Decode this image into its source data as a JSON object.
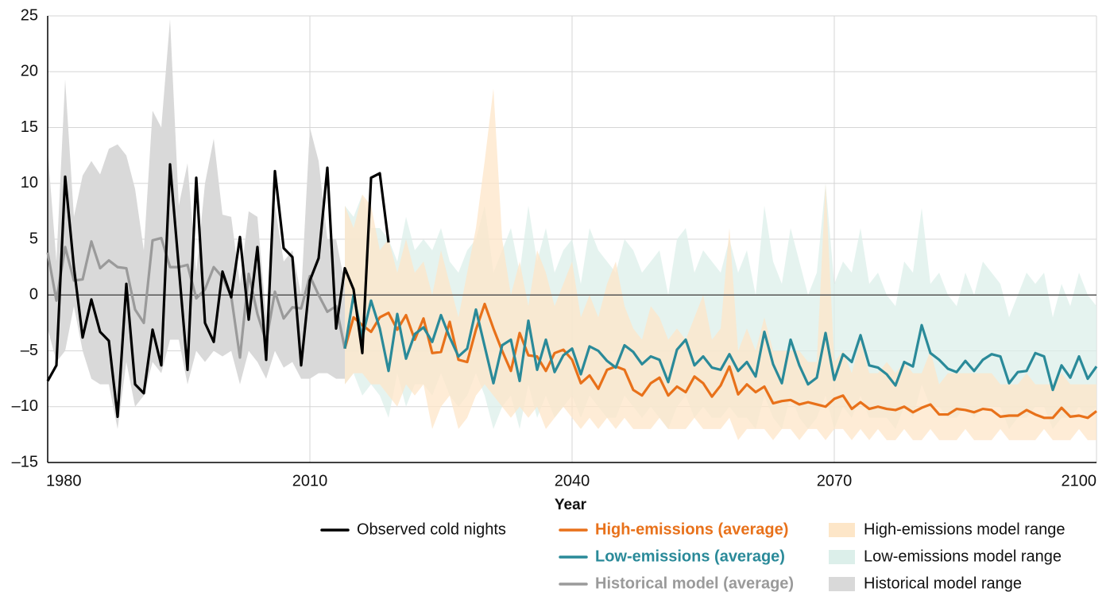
{
  "chart_data": {
    "type": "line",
    "x_label": "Year",
    "xlim": [
      1980,
      2100
    ],
    "xticks": [
      1980,
      2010,
      2040,
      2070,
      2100
    ],
    "ylim": [
      -15,
      25
    ],
    "yticks": [
      {
        "value": -15,
        "label": "–15"
      },
      {
        "value": -10,
        "label": "–10"
      },
      {
        "value": -5,
        "label": "–5"
      },
      0,
      5,
      10,
      15,
      20,
      25
    ],
    "grid": true,
    "series": [
      {
        "name": "Observed cold nights",
        "type": "line",
        "color": "#000000",
        "x": [
          1980,
          1981,
          1982,
          1983,
          1984,
          1985,
          1986,
          1987,
          1988,
          1989,
          1990,
          1991,
          1992,
          1993,
          1994,
          1995,
          1996,
          1997,
          1998,
          1999,
          2000,
          2001,
          2002,
          2003,
          2004,
          2005,
          2006,
          2007,
          2008,
          2009,
          2010,
          2011,
          2012,
          2013,
          2014,
          2015,
          2016,
          2017,
          2018,
          2019
        ],
        "values": [
          -7.7,
          -6.3,
          10.6,
          2.5,
          -3.8,
          -0.4,
          -3.3,
          -4.1,
          -10.9,
          1.0,
          -8,
          -8.8,
          -3.1,
          -6.3,
          11.7,
          2.5,
          -6.7,
          10.5,
          -2.5,
          -4.2,
          2.1,
          -0.2,
          5.2,
          -2.2,
          4.3,
          -5.8,
          11.1,
          4.2,
          3.4,
          -6.3,
          1.3,
          3.3,
          11.4,
          -3.0,
          2.4,
          0.5,
          -5.2,
          10.5,
          10.9,
          4.7
        ]
      },
      {
        "name": "High-emissions (average)",
        "type": "line",
        "color": "#e8711a",
        "emphasis": true,
        "x": [
          2014,
          2015,
          2016,
          2017,
          2018,
          2019,
          2020,
          2021,
          2022,
          2023,
          2024,
          2025,
          2026,
          2027,
          2028,
          2029,
          2030,
          2031,
          2032,
          2033,
          2034,
          2035,
          2036,
          2037,
          2038,
          2039,
          2040,
          2041,
          2042,
          2043,
          2044,
          2045,
          2046,
          2047,
          2048,
          2049,
          2050,
          2051,
          2052,
          2053,
          2054,
          2055,
          2056,
          2057,
          2058,
          2059,
          2060,
          2061,
          2062,
          2063,
          2064,
          2065,
          2066,
          2067,
          2068,
          2069,
          2070,
          2071,
          2072,
          2073,
          2074,
          2075,
          2076,
          2077,
          2078,
          2079,
          2080,
          2081,
          2082,
          2083,
          2084,
          2085,
          2086,
          2087,
          2088,
          2089,
          2090,
          2091,
          2092,
          2093,
          2094,
          2095,
          2096,
          2097,
          2098,
          2099,
          2100
        ],
        "values": [
          -4.8,
          -2,
          -2.7,
          -3.3,
          -2,
          -1.6,
          -3.1,
          -1.8,
          -4,
          -2.1,
          -5.2,
          -5.1,
          -2.4,
          -5.8,
          -6,
          -3.1,
          -0.8,
          -3,
          -5,
          -6.8,
          -3.4,
          -5.4,
          -5.5,
          -6.8,
          -5.2,
          -4.9,
          -5.8,
          -7.9,
          -7.2,
          -8.4,
          -6.7,
          -6.4,
          -6.7,
          -8.5,
          -9.0,
          -7.9,
          -7.4,
          -9.0,
          -8.2,
          -8.7,
          -7.3,
          -7.9,
          -9.1,
          -8.1,
          -6.4,
          -8.9,
          -8.0,
          -8.7,
          -8.2,
          -9.7,
          -9.5,
          -9.4,
          -9.8,
          -9.6,
          -9.8,
          -10.0,
          -9.3,
          -9.0,
          -10.2,
          -9.6,
          -10.2,
          -10.0,
          -10.2,
          -10.3,
          -10.0,
          -10.5,
          -10.1,
          -9.8,
          -10.7,
          -10.7,
          -10.2,
          -10.3,
          -10.5,
          -10.2,
          -10.3,
          -10.9,
          -10.8,
          -10.8,
          -10.3,
          -10.7,
          -11.0,
          -11.0,
          -10.1,
          -10.9,
          -10.8,
          -11.0,
          -10.4
        ]
      },
      {
        "name": "Low-emissions (average)",
        "type": "line",
        "color": "#2a8a99",
        "emphasis": true,
        "x": [
          2014,
          2015,
          2016,
          2017,
          2018,
          2019,
          2020,
          2021,
          2022,
          2023,
          2024,
          2025,
          2026,
          2027,
          2028,
          2029,
          2030,
          2031,
          2032,
          2033,
          2034,
          2035,
          2036,
          2037,
          2038,
          2039,
          2040,
          2041,
          2042,
          2043,
          2044,
          2045,
          2046,
          2047,
          2048,
          2049,
          2050,
          2051,
          2052,
          2053,
          2054,
          2055,
          2056,
          2057,
          2058,
          2059,
          2060,
          2061,
          2062,
          2063,
          2064,
          2065,
          2066,
          2067,
          2068,
          2069,
          2070,
          2071,
          2072,
          2073,
          2074,
          2075,
          2076,
          2077,
          2078,
          2079,
          2080,
          2081,
          2082,
          2083,
          2084,
          2085,
          2086,
          2087,
          2088,
          2089,
          2090,
          2091,
          2092,
          2093,
          2094,
          2095,
          2096,
          2097,
          2098,
          2099,
          2100
        ],
        "values": [
          -4.8,
          0.0,
          -3.8,
          -0.5,
          -3.0,
          -6.8,
          -1.7,
          -5.7,
          -3.5,
          -2.9,
          -4.2,
          -1.8,
          -3.8,
          -5.5,
          -4.8,
          -1.3,
          -4.6,
          -7.9,
          -4.5,
          -4.0,
          -7.7,
          -2.3,
          -6.7,
          -4.0,
          -6.9,
          -5.4,
          -4.8,
          -7.1,
          -4.6,
          -5.0,
          -5.9,
          -6.5,
          -4.5,
          -5.1,
          -6.2,
          -5.5,
          -5.8,
          -7.8,
          -4.9,
          -4.0,
          -6.3,
          -5.5,
          -6.5,
          -6.7,
          -5.3,
          -6.8,
          -6.0,
          -7.3,
          -3.3,
          -6.2,
          -7.9,
          -4.0,
          -6.3,
          -8.0,
          -7.4,
          -3.4,
          -7.6,
          -5.3,
          -6.0,
          -3.6,
          -6.3,
          -6.5,
          -7.1,
          -8.1,
          -6.0,
          -6.4,
          -2.7,
          -5.2,
          -5.8,
          -6.6,
          -6.9,
          -5.9,
          -6.8,
          -5.8,
          -5.3,
          -5.5,
          -7.9,
          -6.9,
          -6.8,
          -5.2,
          -5.5,
          -8.5,
          -6.3,
          -7.4,
          -5.5,
          -7.5,
          -6.4
        ]
      },
      {
        "name": "Historical model (average)",
        "type": "line",
        "color": "#9a9a9a",
        "emphasis": true,
        "x": [
          1980,
          1981,
          1982,
          1983,
          1984,
          1985,
          1986,
          1987,
          1988,
          1989,
          1990,
          1991,
          1992,
          1993,
          1994,
          1995,
          1996,
          1997,
          1998,
          1999,
          2000,
          2001,
          2002,
          2003,
          2004,
          2005,
          2006,
          2007,
          2008,
          2009,
          2010,
          2011,
          2012,
          2013,
          2014
        ],
        "values": [
          3.8,
          -0.5,
          4.3,
          1.3,
          1.4,
          4.8,
          2.4,
          3.1,
          2.5,
          2.4,
          -1.3,
          -2.5,
          4.9,
          5.1,
          2.5,
          2.5,
          2.7,
          -0.3,
          0.5,
          2.5,
          1.6,
          -0.1,
          -5.6,
          1.9,
          -1.7,
          -4.2,
          0.3,
          -2.1,
          -1.1,
          -1.2,
          1.7,
          0.0,
          -1.5,
          -1.0,
          -4.8
        ]
      },
      {
        "name": "High-emissions model range",
        "type": "band",
        "color": "#fde6c8",
        "x": [
          2014,
          2015,
          2016,
          2017,
          2018,
          2019,
          2020,
          2021,
          2022,
          2023,
          2024,
          2025,
          2026,
          2027,
          2028,
          2029,
          2030,
          2031,
          2032,
          2033,
          2034,
          2035,
          2036,
          2037,
          2038,
          2039,
          2040,
          2041,
          2042,
          2043,
          2044,
          2045,
          2046,
          2047,
          2048,
          2049,
          2050,
          2051,
          2052,
          2053,
          2054,
          2055,
          2056,
          2057,
          2058,
          2059,
          2060,
          2061,
          2062,
          2063,
          2064,
          2065,
          2066,
          2067,
          2068,
          2069,
          2070,
          2071,
          2072,
          2073,
          2074,
          2075,
          2076,
          2077,
          2078,
          2079,
          2080,
          2081,
          2082,
          2083,
          2084,
          2085,
          2086,
          2087,
          2088,
          2089,
          2090,
          2091,
          2092,
          2093,
          2094,
          2095,
          2096,
          2097,
          2098,
          2099,
          2100
        ],
        "upper": [
          8,
          6,
          9,
          8,
          4,
          5,
          2,
          5,
          2,
          3,
          0,
          4,
          1,
          -2,
          2,
          6,
          12,
          18.5,
          5,
          0,
          3,
          -1,
          4,
          2,
          -1,
          1,
          3,
          -2,
          0,
          -2,
          1,
          3,
          -1,
          -3,
          -4,
          -1,
          -2,
          -4,
          -3,
          -4,
          -2,
          0,
          -4,
          -3,
          6,
          -5,
          -3,
          -5,
          -2,
          -5,
          -5,
          -5,
          -5,
          -6,
          -6,
          10,
          -6,
          -5,
          -7,
          -4,
          -7,
          -7,
          -6,
          -7,
          -6,
          -7,
          -7,
          -5,
          -8,
          -7,
          -7,
          -7,
          -7,
          -7,
          -7,
          -8,
          -8,
          -8,
          -7,
          -8,
          -8,
          -8,
          -7,
          -8,
          -8,
          -8,
          -8
        ],
        "lower": [
          -8,
          -7,
          -7,
          -8,
          -8,
          -9,
          -10,
          -8,
          -9,
          -8,
          -12,
          -10,
          -9,
          -12,
          -11,
          -9,
          -8,
          -9,
          -10,
          -11,
          -10,
          -11,
          -10,
          -12,
          -11,
          -10,
          -11,
          -12,
          -11,
          -12,
          -11,
          -12,
          -11,
          -12,
          -12,
          -12,
          -11,
          -12,
          -12,
          -12,
          -11,
          -12,
          -12,
          -12,
          -11,
          -13,
          -12,
          -12,
          -12,
          -13,
          -12,
          -12,
          -13,
          -12,
          -12,
          -13,
          -12,
          -12,
          -13,
          -12,
          -13,
          -12,
          -13,
          -13,
          -12,
          -13,
          -13,
          -12,
          -13,
          -13,
          -13,
          -12,
          -13,
          -13,
          -13,
          -12,
          -13,
          -13,
          -13,
          -13,
          -12,
          -13,
          -13,
          -13,
          -12,
          -13,
          -13
        ]
      },
      {
        "name": "Low-emissions model range",
        "type": "band",
        "color": "#dcefea",
        "x": [
          2014,
          2015,
          2016,
          2017,
          2018,
          2019,
          2020,
          2021,
          2022,
          2023,
          2024,
          2025,
          2026,
          2027,
          2028,
          2029,
          2030,
          2031,
          2032,
          2033,
          2034,
          2035,
          2036,
          2037,
          2038,
          2039,
          2040,
          2041,
          2042,
          2043,
          2044,
          2045,
          2046,
          2047,
          2048,
          2049,
          2050,
          2051,
          2052,
          2053,
          2054,
          2055,
          2056,
          2057,
          2058,
          2059,
          2060,
          2061,
          2062,
          2063,
          2064,
          2065,
          2066,
          2067,
          2068,
          2069,
          2070,
          2071,
          2072,
          2073,
          2074,
          2075,
          2076,
          2077,
          2078,
          2079,
          2080,
          2081,
          2082,
          2083,
          2084,
          2085,
          2086,
          2087,
          2088,
          2089,
          2090,
          2091,
          2092,
          2093,
          2094,
          2095,
          2096,
          2097,
          2098,
          2099,
          2100
        ],
        "upper": [
          8,
          7,
          9,
          6,
          6,
          5,
          3,
          7,
          4,
          5,
          4,
          6,
          3,
          2,
          4,
          5,
          8,
          2,
          4,
          6,
          2,
          8,
          3,
          6,
          2,
          4,
          5,
          1,
          6,
          4,
          3,
          2,
          5,
          4,
          2,
          3,
          4,
          0,
          5,
          6,
          2,
          4,
          3,
          2,
          5,
          2,
          4,
          0,
          8,
          3,
          1,
          6,
          3,
          0,
          2,
          10,
          1,
          3,
          2,
          6,
          1,
          2,
          0,
          -1,
          3,
          2,
          7.8,
          1,
          2,
          0,
          -1,
          2,
          0,
          3,
          2,
          1,
          -2,
          0,
          2,
          1,
          2,
          -2,
          1,
          -1,
          2,
          0,
          -1
        ],
        "lower": [
          -8,
          -7,
          -9,
          -8,
          -9,
          -11,
          -7,
          -10,
          -8,
          -8,
          -9,
          -7,
          -9,
          -10,
          -9,
          -7,
          -9,
          -12,
          -10,
          -9,
          -12,
          -8,
          -11,
          -9,
          -11,
          -10,
          -9,
          -11,
          -9,
          -10,
          -11,
          -11,
          -9,
          -10,
          -11,
          -10,
          -11,
          -12,
          -10,
          -9,
          -11,
          -10,
          -11,
          -11,
          -10,
          -11,
          -11,
          -12,
          -9,
          -11,
          -12,
          -9,
          -11,
          -12,
          -11,
          -9,
          -12,
          -10,
          -11,
          -9,
          -11,
          -11,
          -11,
          -12,
          -10,
          -11,
          -8,
          -10,
          -10,
          -11,
          -11,
          -10,
          -11,
          -10,
          -10,
          -10,
          -12,
          -11,
          -11,
          -10,
          -10,
          -12,
          -11,
          -11,
          -10,
          -11,
          -10
        ]
      },
      {
        "name": "Historical model range",
        "type": "band",
        "color": "#d9d9d9",
        "x": [
          1980,
          1981,
          1982,
          1983,
          1984,
          1985,
          1986,
          1987,
          1988,
          1989,
          1990,
          1991,
          1992,
          1993,
          1994,
          1995,
          1996,
          1997,
          1998,
          1999,
          2000,
          2001,
          2002,
          2003,
          2004,
          2005,
          2006,
          2007,
          2008,
          2009,
          2010,
          2011,
          2012,
          2013,
          2014
        ],
        "upper": [
          13,
          3,
          19.3,
          7,
          10.7,
          12,
          10.8,
          13.1,
          13.5,
          12.5,
          9.5,
          4,
          16.5,
          15,
          24.7,
          8,
          11.8,
          2,
          10,
          14,
          7.2,
          7,
          1,
          7.5,
          7,
          -2,
          8,
          3,
          4,
          0,
          15,
          12,
          5,
          5,
          1
        ],
        "lower": [
          -3,
          -6,
          -5,
          -1,
          -5,
          -7.5,
          -8,
          -8,
          -12,
          -6,
          -10,
          -9,
          -6,
          -7,
          -4,
          -4,
          -8,
          -5,
          -6,
          -5,
          -5.5,
          -5,
          -8,
          -5,
          -6,
          -7.5,
          -5,
          -6.5,
          -6,
          -7.5,
          -7.5,
          -7,
          -7,
          -7.5,
          -7.5
        ]
      }
    ]
  }
}
